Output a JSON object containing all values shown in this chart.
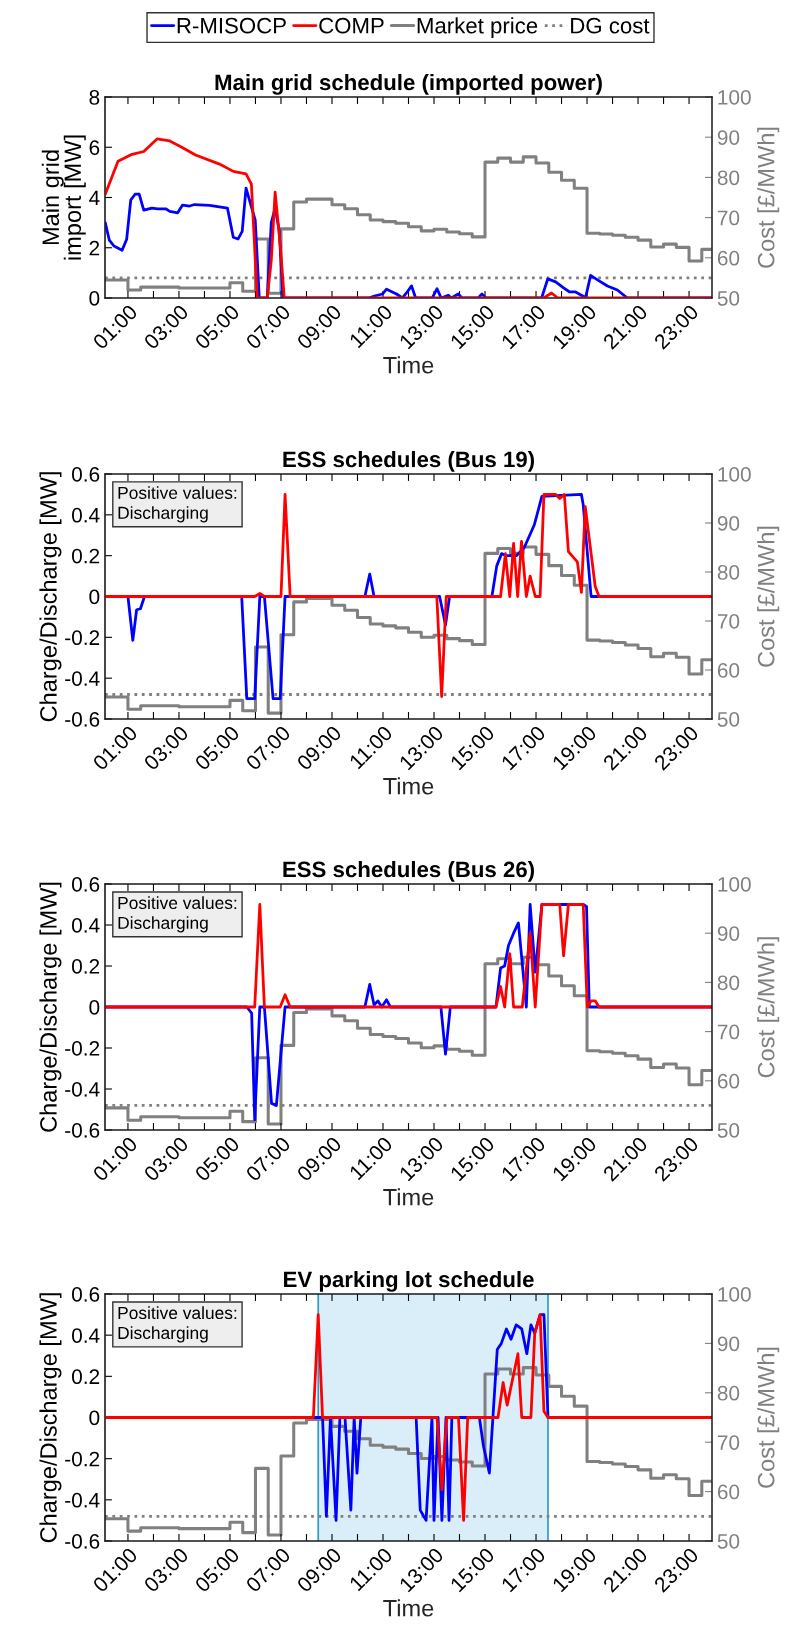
{
  "chart_data": [
    {
      "type": "line",
      "title": "Main grid schedule (imported power)",
      "xlabel": "Time",
      "ylabel": "Main grid\nimport [MW]",
      "y2label": "Cost [£/MWh]",
      "legend": "top",
      "xlim": [
        0.1,
        23.9
      ],
      "xticks": [
        {
          "value": 1,
          "label": "01:00"
        },
        {
          "value": 2,
          "label": null
        },
        {
          "value": 3,
          "label": "03:00"
        },
        {
          "value": 4,
          "label": null
        },
        {
          "value": 5,
          "label": "05:00"
        },
        {
          "value": 6,
          "label": null
        },
        {
          "value": 7,
          "label": "07:00"
        },
        {
          "value": 8,
          "label": null
        },
        {
          "value": 9,
          "label": "09:00"
        },
        {
          "value": 10,
          "label": null
        },
        {
          "value": 11,
          "label": "11:00"
        },
        {
          "value": 12,
          "label": null
        },
        {
          "value": 13,
          "label": "13:00"
        },
        {
          "value": 14,
          "label": null
        },
        {
          "value": 15,
          "label": "15:00"
        },
        {
          "value": 16,
          "label": null
        },
        {
          "value": 17,
          "label": "17:00"
        },
        {
          "value": 18,
          "label": null
        },
        {
          "value": 19,
          "label": "19:00"
        },
        {
          "value": 20,
          "label": null
        },
        {
          "value": 21,
          "label": "21:00"
        },
        {
          "value": 22,
          "label": null
        },
        {
          "value": 23,
          "label": "23:00"
        }
      ],
      "ylim": [
        0,
        8
      ],
      "yticks": [
        0,
        2,
        4,
        6,
        8
      ],
      "y2lim": [
        50,
        100
      ],
      "y2ticks": [
        50,
        60,
        70,
        80,
        90,
        100
      ],
      "series": [
        {
          "name": "R-MISOCP",
          "color": "#0000ff",
          "x": [
            0.11,
            0.27,
            0.45,
            0.77,
            0.95,
            1.11,
            1.28,
            1.44,
            1.62,
            1.94,
            2.17,
            2.48,
            2.64,
            2.95,
            3.14,
            3.42,
            3.61,
            4.2,
            4.9,
            5.13,
            5.32,
            5.48,
            5.63,
            5.99,
            6.15,
            6.46,
            6.62,
            6.77,
            6.93,
            7.08,
            10.44,
            10.67,
            10.98,
            11.14,
            11.53,
            11.76,
            11.92,
            12.12,
            12.28,
            12.93,
            13.12,
            13.28,
            13.56,
            13.68,
            13.95,
            14.1,
            14.73,
            14.88,
            15.04,
            17.22,
            17.46,
            17.77,
            18.08,
            18.32,
            18.55,
            18.78,
            18.94,
            19.14,
            19.41,
            19.8,
            20.19,
            20.58,
            23.9
          ],
          "values": [
            3.0,
            2.3,
            2.07,
            1.9,
            2.34,
            3.9,
            4.13,
            4.13,
            3.5,
            3.58,
            3.55,
            3.55,
            3.45,
            3.39,
            3.7,
            3.66,
            3.72,
            3.69,
            3.58,
            2.42,
            2.35,
            2.65,
            4.37,
            3.1,
            0,
            0,
            3.0,
            3.58,
            2.7,
            0,
            0,
            0.08,
            0.16,
            0.35,
            0.16,
            0,
            0.2,
            0.48,
            0,
            0,
            0.37,
            0,
            0.11,
            0,
            0.16,
            0,
            0,
            0.16,
            0,
            0,
            0.76,
            0.64,
            0.4,
            0.24,
            0.24,
            0.11,
            0,
            0.9,
            0.72,
            0.48,
            0.32,
            0,
            0
          ]
        },
        {
          "name": "COMP",
          "color": "#ff0000",
          "x": [
            0.11,
            0.61,
            1.16,
            1.62,
            2.14,
            2.64,
            3.11,
            3.65,
            4.59,
            5.13,
            5.63,
            5.84,
            6.07,
            6.46,
            6.62,
            6.77,
            6.98,
            7.13,
            17.3,
            17.61,
            17.85,
            23.9
          ],
          "values": [
            4.13,
            5.44,
            5.72,
            5.83,
            6.33,
            6.25,
            6.0,
            5.69,
            5.33,
            5.04,
            4.94,
            4.53,
            0,
            0,
            1.5,
            4.21,
            2.0,
            0,
            0,
            0.2,
            0,
            0
          ]
        },
        {
          "name": "Market price",
          "color": "#808080",
          "type": "step",
          "axis": "y2",
          "x": [
            0.1,
            1.0,
            1.5,
            3.0,
            5.0,
            5.5,
            6.0,
            6.5,
            7.0,
            7.5,
            8.0,
            9.0,
            9.5,
            10.0,
            10.5,
            11.0,
            11.5,
            12.0,
            12.5,
            13.0,
            13.5,
            14.0,
            14.5,
            15.0,
            15.5,
            16.0,
            16.5,
            17.0,
            17.5,
            18.0,
            18.5,
            19.0,
            19.5,
            20.0,
            20.5,
            21.0,
            21.5,
            22.0,
            22.5,
            23.0,
            23.5,
            23.9
          ],
          "values": [
            54.5,
            52.0,
            52.7,
            52.5,
            53.8,
            51.7,
            64.7,
            51.2,
            67.2,
            73.9,
            74.6,
            73.2,
            72.2,
            70.7,
            69.4,
            69.0,
            68.6,
            67.7,
            66.7,
            67.1,
            66.4,
            66.0,
            65.2,
            83.8,
            84.8,
            83.8,
            85.1,
            83.6,
            81.3,
            79.3,
            77.3,
            66.1,
            65.9,
            65.6,
            65.1,
            64.4,
            62.7,
            63.4,
            62.6,
            59.2,
            62.1,
            62.1
          ]
        },
        {
          "name": "DG cost",
          "color": "#808080",
          "line_style": "dotted",
          "axis": "y2",
          "x": [
            0.1,
            23.9
          ],
          "values": [
            55,
            55
          ]
        }
      ]
    },
    {
      "type": "line",
      "title": "ESS schedules (Bus 19)",
      "xlabel": "Time",
      "ylabel": "Charge/Discharge [MW]",
      "y2label": "Cost [£/MWh]",
      "annotations": [
        "Positive values:\nDischarging"
      ],
      "xlim": [
        0.1,
        23.9
      ],
      "xticks": [
        {
          "value": 1,
          "label": "01:00"
        },
        {
          "value": 2,
          "label": null
        },
        {
          "value": 3,
          "label": "03:00"
        },
        {
          "value": 4,
          "label": null
        },
        {
          "value": 5,
          "label": "05:00"
        },
        {
          "value": 6,
          "label": null
        },
        {
          "value": 7,
          "label": "07:00"
        },
        {
          "value": 8,
          "label": null
        },
        {
          "value": 9,
          "label": "09:00"
        },
        {
          "value": 10,
          "label": null
        },
        {
          "value": 11,
          "label": "11:00"
        },
        {
          "value": 12,
          "label": null
        },
        {
          "value": 13,
          "label": "13:00"
        },
        {
          "value": 14,
          "label": null
        },
        {
          "value": 15,
          "label": "15:00"
        },
        {
          "value": 16,
          "label": null
        },
        {
          "value": 17,
          "label": "17:00"
        },
        {
          "value": 18,
          "label": null
        },
        {
          "value": 19,
          "label": "19:00"
        },
        {
          "value": 20,
          "label": null
        },
        {
          "value": 21,
          "label": "21:00"
        },
        {
          "value": 22,
          "label": null
        },
        {
          "value": 23,
          "label": "23:00"
        }
      ],
      "ylim": [
        -0.6,
        0.6
      ],
      "yticks": [
        -0.6,
        -0.4,
        -0.2,
        0,
        0.2,
        0.4,
        0.6
      ],
      "y2lim": [
        50,
        100
      ],
      "y2ticks": [
        50,
        60,
        70,
        80,
        90,
        100
      ],
      "series": [
        {
          "color": "#0000ff",
          "x": [
            0.11,
            1.0,
            1.19,
            1.34,
            1.49,
            1.65,
            5.46,
            5.66,
            5.97,
            6.17,
            6.35,
            6.69,
            6.97,
            7.16,
            10.29,
            10.48,
            10.65,
            13.22,
            13.45,
            13.61,
            15.27,
            15.46,
            15.65,
            15.85,
            16.23,
            16.54,
            16.93,
            17.23,
            18.78,
            18.85,
            19.16,
            23.9
          ],
          "values": [
            0,
            0,
            -0.215,
            -0.065,
            -0.06,
            0,
            0,
            -0.5,
            -0.5,
            0,
            0,
            -0.5,
            -0.5,
            0,
            0,
            0.11,
            0,
            0,
            -0.14,
            0,
            0,
            0.15,
            0.21,
            0.2,
            0.2,
            0.24,
            0.35,
            0.49,
            0.5,
            0.45,
            0,
            0
          ]
        },
        {
          "color": "#ff0000",
          "x": [
            0.11,
            5.97,
            6.17,
            6.35,
            7.0,
            7.16,
            7.36,
            13.11,
            13.3,
            13.48,
            15.61,
            15.8,
            15.97,
            16.12,
            16.28,
            16.43,
            16.62,
            16.77,
            16.97,
            17.16,
            17.31,
            17.77,
            17.93,
            18.11,
            18.27,
            18.62,
            18.78,
            18.93,
            19.32,
            19.47,
            23.9
          ],
          "values": [
            0,
            0,
            0.015,
            0,
            0,
            0.5,
            0,
            0,
            -0.49,
            0,
            0,
            0.21,
            0,
            0.26,
            0,
            0.27,
            0,
            0.1,
            0,
            0,
            0.5,
            0.5,
            0.48,
            0.5,
            0.22,
            0.17,
            0.02,
            0.44,
            0.05,
            0,
            0
          ]
        },
        {
          "color": "#808080",
          "type": "step",
          "axis": "y2",
          "x": [
            0.1,
            1.0,
            1.5,
            3.0,
            5.0,
            5.5,
            6.0,
            6.5,
            7.0,
            7.5,
            8.0,
            9.0,
            9.5,
            10.0,
            10.5,
            11.0,
            11.5,
            12.0,
            12.5,
            13.0,
            13.5,
            14.0,
            14.5,
            15.0,
            15.5,
            16.0,
            16.5,
            17.0,
            17.5,
            18.0,
            18.5,
            19.0,
            19.5,
            20.0,
            20.5,
            21.0,
            21.5,
            22.0,
            22.5,
            23.0,
            23.5,
            23.9
          ],
          "values": [
            54.5,
            52.0,
            52.7,
            52.5,
            53.8,
            51.7,
            64.7,
            51.2,
            67.2,
            73.9,
            74.6,
            73.2,
            72.2,
            70.7,
            69.4,
            69.0,
            68.6,
            67.7,
            66.7,
            67.1,
            66.4,
            66.0,
            65.2,
            83.8,
            84.8,
            83.8,
            85.1,
            83.6,
            81.3,
            79.3,
            77.3,
            66.1,
            65.9,
            65.6,
            65.1,
            64.4,
            62.7,
            63.4,
            62.6,
            59.2,
            62.1,
            62.1
          ]
        },
        {
          "color": "#808080",
          "line_style": "dotted",
          "axis": "y2",
          "x": [
            0.1,
            23.9
          ],
          "values": [
            55,
            55
          ]
        }
      ]
    },
    {
      "type": "line",
      "title": "ESS schedules (Bus 26)",
      "xlabel": "Time",
      "ylabel": "Charge/Discharge [MW]",
      "y2label": "Cost [£/MWh]",
      "annotations": [
        "Positive values:\nDischarging"
      ],
      "xlim": [
        0.1,
        23.9
      ],
      "xticks": [
        {
          "value": 1,
          "label": "01:00"
        },
        {
          "value": 2,
          "label": null
        },
        {
          "value": 3,
          "label": "03:00"
        },
        {
          "value": 4,
          "label": null
        },
        {
          "value": 5,
          "label": "05:00"
        },
        {
          "value": 6,
          "label": null
        },
        {
          "value": 7,
          "label": "07:00"
        },
        {
          "value": 8,
          "label": null
        },
        {
          "value": 9,
          "label": "09:00"
        },
        {
          "value": 10,
          "label": null
        },
        {
          "value": 11,
          "label": "11:00"
        },
        {
          "value": 12,
          "label": null
        },
        {
          "value": 13,
          "label": "13:00"
        },
        {
          "value": 14,
          "label": null
        },
        {
          "value": 15,
          "label": "15:00"
        },
        {
          "value": 16,
          "label": null
        },
        {
          "value": 17,
          "label": "17:00"
        },
        {
          "value": 18,
          "label": null
        },
        {
          "value": 19,
          "label": "19:00"
        },
        {
          "value": 20,
          "label": null
        },
        {
          "value": 21,
          "label": "21:00"
        },
        {
          "value": 22,
          "label": null
        },
        {
          "value": 23,
          "label": "23:00"
        }
      ],
      "ylim": [
        -0.6,
        0.6
      ],
      "yticks": [
        -0.6,
        -0.4,
        -0.2,
        0,
        0.2,
        0.4,
        0.6
      ],
      "y2lim": [
        50,
        100
      ],
      "y2ticks": [
        50,
        60,
        70,
        80,
        90,
        100
      ],
      "series": [
        {
          "color": "#0000ff",
          "x": [
            0.11,
            5.66,
            5.85,
            5.97,
            6.17,
            6.35,
            6.63,
            6.82,
            7.16,
            10.29,
            10.48,
            10.65,
            10.8,
            10.95,
            11.14,
            11.29,
            13.27,
            13.45,
            13.64,
            15.43,
            15.61,
            15.77,
            15.92,
            16.12,
            16.31,
            16.62,
            16.77,
            16.97,
            17.23,
            18.85,
            18.98,
            19.09,
            23.9
          ],
          "values": [
            0,
            0,
            -0.03,
            -0.55,
            0,
            0,
            -0.47,
            -0.48,
            0,
            0,
            0.11,
            0.01,
            0.03,
            0,
            0.035,
            0,
            0,
            -0.23,
            0,
            0,
            0.19,
            0.2,
            0.3,
            0.36,
            0.41,
            0,
            0.5,
            0.17,
            0.5,
            0.5,
            0.49,
            0,
            0
          ]
        },
        {
          "color": "#ff0000",
          "x": [
            0.11,
            5.97,
            6.17,
            6.35,
            6.97,
            7.16,
            7.36,
            15.43,
            15.61,
            15.77,
            15.97,
            16.12,
            16.46,
            16.77,
            16.97,
            17.23,
            17.93,
            18.08,
            18.27,
            18.85,
            19.01,
            19.16,
            19.32,
            19.47,
            23.9
          ],
          "values": [
            0,
            0,
            0.5,
            0,
            0,
            0.06,
            0,
            0,
            0.1,
            0,
            0.26,
            0,
            0,
            0.36,
            0,
            0.5,
            0.5,
            0.25,
            0.5,
            0.5,
            0,
            0.03,
            0.03,
            0,
            0
          ]
        },
        {
          "color": "#808080",
          "type": "step",
          "axis": "y2",
          "x": [
            0.1,
            1.0,
            1.5,
            3.0,
            5.0,
            5.5,
            6.0,
            6.5,
            7.0,
            7.5,
            8.0,
            9.0,
            9.5,
            10.0,
            10.5,
            11.0,
            11.5,
            12.0,
            12.5,
            13.0,
            13.5,
            14.0,
            14.5,
            15.0,
            15.5,
            16.0,
            16.5,
            17.0,
            17.5,
            18.0,
            18.5,
            19.0,
            19.5,
            20.0,
            20.5,
            21.0,
            21.5,
            22.0,
            22.5,
            23.0,
            23.5,
            23.9
          ],
          "values": [
            54.5,
            52.0,
            52.7,
            52.5,
            53.8,
            51.7,
            64.7,
            51.2,
            67.2,
            73.9,
            74.6,
            73.2,
            72.2,
            70.7,
            69.4,
            69.0,
            68.6,
            67.7,
            66.7,
            67.1,
            66.4,
            66.0,
            65.2,
            83.8,
            84.8,
            83.8,
            85.1,
            83.6,
            81.3,
            79.3,
            77.3,
            66.1,
            65.9,
            65.6,
            65.1,
            64.4,
            62.7,
            63.4,
            62.6,
            59.2,
            62.1,
            62.1
          ]
        },
        {
          "color": "#808080",
          "line_style": "dotted",
          "axis": "y2",
          "x": [
            0.1,
            23.9
          ],
          "values": [
            55,
            55
          ]
        }
      ]
    },
    {
      "type": "line",
      "title": "EV parking lot schedule",
      "xlabel": "Time",
      "ylabel": "Charge/Discharge [MW]",
      "y2label": "Cost [£/MWh]",
      "annotations": [
        "Positive values:\nDischarging"
      ],
      "bands": [
        {
          "axis": "x",
          "from": 8.46,
          "to": 17.47,
          "color": "#d9eef9"
        }
      ],
      "ref_lines": [
        {
          "axis": "x",
          "value": 8.46,
          "color": "#2a9bcc"
        },
        {
          "axis": "x",
          "value": 17.47,
          "color": "#2a9bcc"
        }
      ],
      "xlim": [
        0.1,
        23.9
      ],
      "xticks": [
        {
          "value": 1,
          "label": "01:00"
        },
        {
          "value": 2,
          "label": null
        },
        {
          "value": 3,
          "label": "03:00"
        },
        {
          "value": 4,
          "label": null
        },
        {
          "value": 5,
          "label": "05:00"
        },
        {
          "value": 6,
          "label": null
        },
        {
          "value": 7,
          "label": "07:00"
        },
        {
          "value": 8,
          "label": null
        },
        {
          "value": 9,
          "label": "09:00"
        },
        {
          "value": 10,
          "label": null
        },
        {
          "value": 11,
          "label": "11:00"
        },
        {
          "value": 12,
          "label": null
        },
        {
          "value": 13,
          "label": "13:00"
        },
        {
          "value": 14,
          "label": null
        },
        {
          "value": 15,
          "label": "15:00"
        },
        {
          "value": 16,
          "label": null
        },
        {
          "value": 17,
          "label": "17:00"
        },
        {
          "value": 18,
          "label": null
        },
        {
          "value": 19,
          "label": "19:00"
        },
        {
          "value": 20,
          "label": null
        },
        {
          "value": 21,
          "label": "21:00"
        },
        {
          "value": 22,
          "label": null
        },
        {
          "value": 23,
          "label": "23:00"
        }
      ],
      "ylim": [
        -0.6,
        0.6
      ],
      "yticks": [
        -0.6,
        -0.4,
        -0.2,
        0,
        0.2,
        0.4,
        0.6
      ],
      "y2lim": [
        50,
        100
      ],
      "y2ticks": [
        50,
        60,
        70,
        80,
        90,
        100
      ],
      "series": [
        {
          "color": "#0000ff",
          "x": [
            0.11,
            8.63,
            8.78,
            8.94,
            9.16,
            9.31,
            9.51,
            9.74,
            9.87,
            9.98,
            10.13,
            12.3,
            12.46,
            12.69,
            12.92,
            13.0,
            13.16,
            13.31,
            13.47,
            13.59,
            13.7,
            14.78,
            14.94,
            15.17,
            15.48,
            15.64,
            15.84,
            16.02,
            16.22,
            16.44,
            16.64,
            16.8,
            16.95,
            17.16,
            17.31,
            17.47,
            23.9
          ],
          "values": [
            0,
            0,
            -0.48,
            0,
            -0.5,
            0,
            0,
            -0.45,
            0,
            -0.27,
            0,
            0,
            -0.45,
            -0.5,
            0,
            -0.5,
            0,
            -0.5,
            0,
            -0.5,
            0,
            0,
            -0.14,
            -0.27,
            0.33,
            0.36,
            0.43,
            0.38,
            0.45,
            0.43,
            0.31,
            0.45,
            0.41,
            0.5,
            0.5,
            0,
            0
          ]
        },
        {
          "color": "#ff0000",
          "x": [
            0.11,
            8.27,
            8.46,
            8.63,
            13.12,
            13.31,
            13.5,
            13.96,
            14.16,
            14.32,
            15.51,
            15.71,
            15.87,
            16.02,
            16.29,
            16.44,
            16.8,
            16.95,
            17.16,
            17.31,
            17.47,
            23.9
          ],
          "values": [
            0,
            0,
            0.5,
            0,
            0,
            -0.35,
            0,
            0,
            -0.5,
            0,
            0,
            0.17,
            0.06,
            0.15,
            0.31,
            0,
            0,
            0.41,
            0.5,
            0.03,
            0,
            0
          ]
        },
        {
          "color": "#808080",
          "type": "step",
          "axis": "y2",
          "x": [
            0.1,
            1.0,
            1.5,
            3.0,
            5.0,
            5.5,
            6.0,
            6.5,
            7.0,
            7.5,
            8.0,
            9.0,
            9.5,
            10.0,
            10.5,
            11.0,
            11.5,
            12.0,
            12.5,
            13.0,
            13.5,
            14.0,
            14.5,
            15.0,
            15.5,
            16.0,
            16.5,
            17.0,
            17.5,
            18.0,
            18.5,
            19.0,
            19.5,
            20.0,
            20.5,
            21.0,
            21.5,
            22.0,
            22.5,
            23.0,
            23.5,
            23.9
          ],
          "values": [
            54.5,
            52.0,
            52.7,
            52.5,
            53.8,
            51.7,
            64.7,
            51.2,
            67.2,
            73.9,
            74.6,
            73.2,
            72.2,
            70.7,
            69.4,
            69.0,
            68.6,
            67.7,
            66.7,
            67.1,
            66.4,
            66.0,
            65.2,
            83.8,
            84.8,
            83.8,
            85.1,
            83.6,
            81.3,
            79.3,
            77.3,
            66.1,
            65.9,
            65.6,
            65.1,
            64.4,
            62.7,
            63.4,
            62.6,
            59.2,
            62.1,
            62.1
          ]
        },
        {
          "color": "#808080",
          "line_style": "dotted",
          "axis": "y2",
          "x": [
            0.1,
            23.9
          ],
          "values": [
            55,
            55
          ]
        }
      ]
    }
  ]
}
